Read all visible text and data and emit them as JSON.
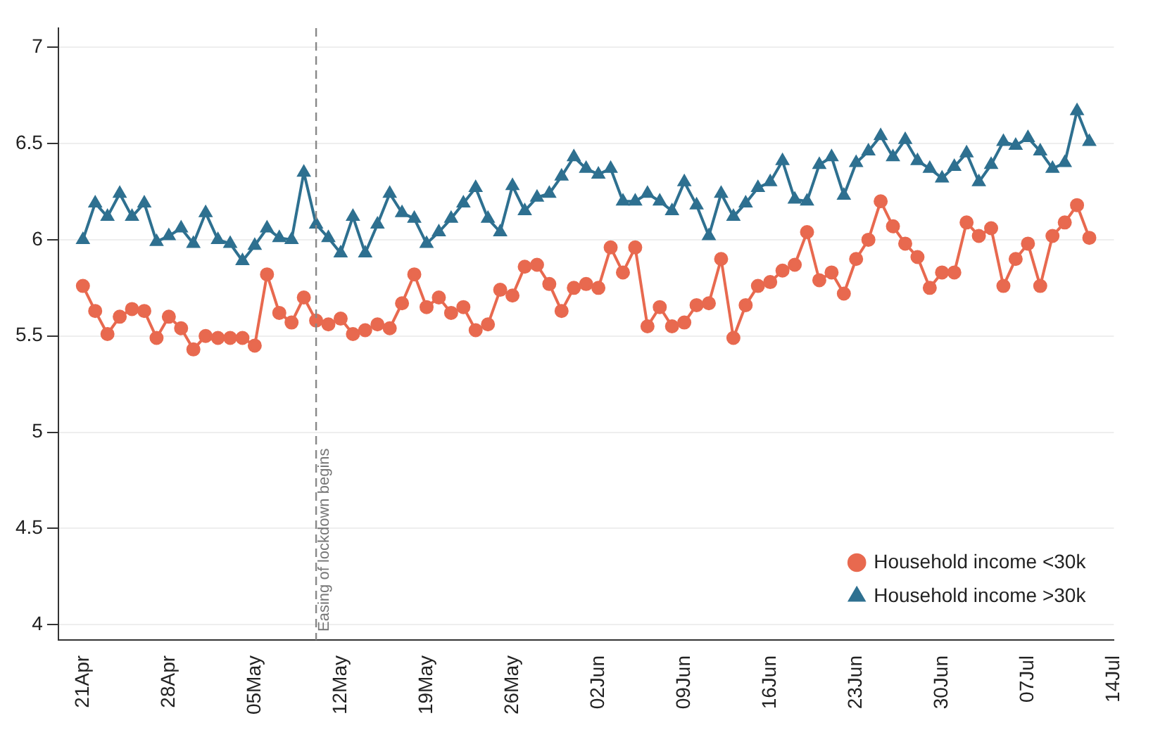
{
  "chart_data": {
    "type": "line",
    "x": [
      "--04-21",
      "--04-22",
      "--04-23",
      "--04-24",
      "--04-25",
      "--04-26",
      "--04-27",
      "--04-28",
      "--04-29",
      "--04-30",
      "--05-01",
      "--05-02",
      "--05-03",
      "--05-04",
      "--05-05",
      "--05-06",
      "--05-07",
      "--05-08",
      "--05-09",
      "--05-10",
      "--05-11",
      "--05-12",
      "--05-13",
      "--05-14",
      "--05-15",
      "--05-16",
      "--05-17",
      "--05-18",
      "--05-19",
      "--05-20",
      "--05-21",
      "--05-22",
      "--05-23",
      "--05-24",
      "--05-25",
      "--05-26",
      "--05-27",
      "--05-28",
      "--05-29",
      "--05-30",
      "--05-31",
      "--06-01",
      "--06-02",
      "--06-03",
      "--06-04",
      "--06-05",
      "--06-06",
      "--06-07",
      "--06-08",
      "--06-09",
      "--06-10",
      "--06-11",
      "--06-12",
      "--06-13",
      "--06-14",
      "--06-15",
      "--06-16",
      "--06-17",
      "--06-18",
      "--06-19",
      "--06-20",
      "--06-21",
      "--06-22",
      "--06-23",
      "--06-24",
      "--06-25",
      "--06-26",
      "--06-27",
      "--06-28",
      "--06-29",
      "--06-30",
      "--07-01",
      "--07-02",
      "--07-03",
      "--07-04",
      "--07-05",
      "--07-06",
      "--07-07",
      "--07-08",
      "--07-09",
      "--07-10",
      "--07-11",
      "--07-12"
    ],
    "series": [
      {
        "name": "Household income <30k",
        "color": "#e8694f",
        "marker": "circle",
        "values": [
          5.76,
          5.63,
          5.51,
          5.6,
          5.64,
          5.63,
          5.49,
          5.6,
          5.54,
          5.43,
          5.5,
          5.49,
          5.49,
          5.49,
          5.45,
          5.82,
          5.62,
          5.57,
          5.7,
          5.58,
          5.56,
          5.59,
          5.51,
          5.53,
          5.56,
          5.54,
          5.67,
          5.82,
          5.65,
          5.7,
          5.62,
          5.65,
          5.53,
          5.56,
          5.74,
          5.71,
          5.86,
          5.87,
          5.77,
          5.63,
          5.75,
          5.77,
          5.75,
          5.96,
          5.83,
          5.96,
          5.55,
          5.65,
          5.55,
          5.57,
          5.66,
          5.67,
          5.9,
          5.49,
          5.66,
          5.76,
          5.78,
          5.84,
          5.87,
          6.04,
          5.79,
          5.83,
          5.72,
          5.9,
          6.0,
          6.2,
          6.07,
          5.98,
          5.91,
          5.75,
          5.83,
          5.83,
          6.09,
          6.02,
          6.06,
          5.76,
          5.9,
          5.98,
          5.76,
          6.02,
          6.09,
          6.18,
          6.01
        ]
      },
      {
        "name": "Household income >30k",
        "color": "#2e7090",
        "marker": "triangle",
        "values": [
          6.0,
          6.19,
          6.12,
          6.24,
          6.12,
          6.19,
          5.99,
          6.02,
          6.06,
          5.98,
          6.14,
          6.0,
          5.98,
          5.89,
          5.97,
          6.06,
          6.01,
          6.0,
          6.35,
          6.08,
          6.01,
          5.93,
          6.12,
          5.93,
          6.08,
          6.24,
          6.14,
          6.11,
          5.98,
          6.04,
          6.11,
          6.19,
          6.27,
          6.11,
          6.04,
          6.28,
          6.15,
          6.22,
          6.24,
          6.33,
          6.43,
          6.37,
          6.34,
          6.37,
          6.2,
          6.2,
          6.24,
          6.2,
          6.15,
          6.3,
          6.18,
          6.02,
          6.24,
          6.12,
          6.19,
          6.27,
          6.3,
          6.41,
          6.21,
          6.2,
          6.39,
          6.43,
          6.23,
          6.4,
          6.46,
          6.54,
          6.43,
          6.52,
          6.41,
          6.37,
          6.32,
          6.38,
          6.45,
          6.3,
          6.39,
          6.51,
          6.49,
          6.53,
          6.46,
          6.37,
          6.4,
          6.67,
          6.51
        ]
      }
    ],
    "xlim": [
      "--04-19",
      "--07-14"
    ],
    "xticks": [
      {
        "value": "--04-21",
        "label": "21Apr"
      },
      {
        "value": "--04-28",
        "label": "28Apr"
      },
      {
        "value": "--05-05",
        "label": "05May"
      },
      {
        "value": "--05-12",
        "label": "12May"
      },
      {
        "value": "--05-19",
        "label": "19May"
      },
      {
        "value": "--05-26",
        "label": "26May"
      },
      {
        "value": "--06-02",
        "label": "02Jun"
      },
      {
        "value": "--06-09",
        "label": "09Jun"
      },
      {
        "value": "--06-16",
        "label": "16Jun"
      },
      {
        "value": "--06-23",
        "label": "23Jun"
      },
      {
        "value": "--06-30",
        "label": "30Jun"
      },
      {
        "value": "--07-07",
        "label": "07Jul"
      },
      {
        "value": "--07-14",
        "label": "14Jul"
      }
    ],
    "ylim": [
      3.92,
      7.1
    ],
    "yticks": [
      4,
      4.5,
      5,
      5.5,
      6,
      6.5,
      7
    ],
    "ref_lines": [
      {
        "axis": "x",
        "value": "--05-10",
        "label": "Easing of lockdown begins",
        "color": "#888888",
        "line_style": "dashed"
      }
    ],
    "grid": "y",
    "legend": "bottom right",
    "line_style": "solid"
  }
}
